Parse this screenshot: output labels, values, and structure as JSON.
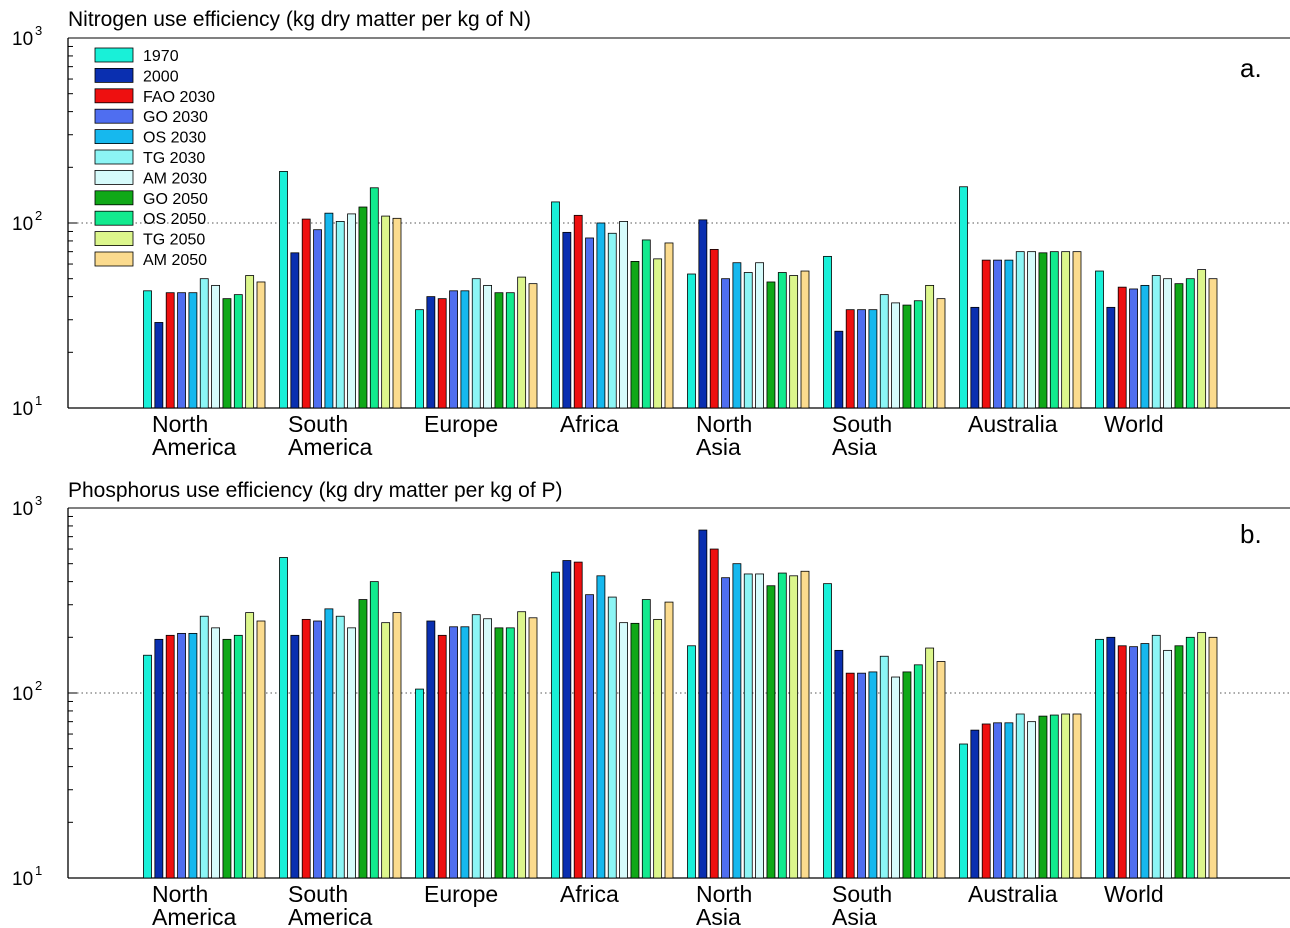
{
  "series_colors": {
    "1970": "#19f0d8",
    "2000": "#0a2fb0",
    "FAO 2030": "#ee1010",
    "GO 2030": "#4f6ef0",
    "OS 2030": "#16b8ee",
    "TG 2030": "#8cf5f5",
    "AM 2030": "#d6fbfb",
    "GO 2050": "#10a818",
    "OS 2050": "#12ea8e",
    "TG 2050": "#dcf68c",
    "AM 2050": "#fbdb8e"
  },
  "chart_data": [
    {
      "type": "bar",
      "title": "Nitrogen use efficiency (kg dry matter per kg of N)",
      "panel_label": "a.",
      "yscale": "log",
      "ylim": [
        10,
        1000
      ],
      "yticks": [
        {
          "base": "10",
          "exp": "1"
        },
        {
          "base": "10",
          "exp": "2"
        },
        {
          "base": "10",
          "exp": "3"
        }
      ],
      "grid": "dotted line at 10^2",
      "legend_position": "top-left",
      "categories": [
        [
          "North",
          "America"
        ],
        [
          "South",
          "America"
        ],
        [
          "Europe"
        ],
        [
          "Africa"
        ],
        [
          "North",
          "Asia"
        ],
        [
          "South",
          "Asia"
        ],
        [
          "Australia"
        ],
        [
          "World"
        ]
      ],
      "series": [
        {
          "name": "1970",
          "values": [
            43,
            190,
            34,
            130,
            53,
            66,
            157,
            55
          ]
        },
        {
          "name": "2000",
          "values": [
            29,
            69,
            40,
            89,
            104,
            26,
            35,
            35
          ]
        },
        {
          "name": "FAO 2030",
          "values": [
            42,
            105,
            39,
            110,
            72,
            34,
            63,
            45
          ]
        },
        {
          "name": "GO 2030",
          "values": [
            42,
            92,
            43,
            83,
            50,
            34,
            63,
            44
          ]
        },
        {
          "name": "OS 2030",
          "values": [
            42,
            113,
            43,
            100,
            61,
            34,
            63,
            46
          ]
        },
        {
          "name": "TG 2030",
          "values": [
            50,
            102,
            50,
            88,
            54,
            41,
            70,
            52
          ]
        },
        {
          "name": "AM 2030",
          "values": [
            46,
            112,
            46,
            102,
            61,
            37,
            70,
            50
          ]
        },
        {
          "name": "GO 2050",
          "values": [
            39,
            122,
            42,
            62,
            48,
            36,
            69,
            47
          ]
        },
        {
          "name": "OS 2050",
          "values": [
            41,
            155,
            42,
            81,
            54,
            38,
            70,
            50
          ]
        },
        {
          "name": "TG 2050",
          "values": [
            52,
            109,
            51,
            64,
            52,
            46,
            70,
            56
          ]
        },
        {
          "name": "AM 2050",
          "values": [
            48,
            106,
            47,
            78,
            55,
            39,
            70,
            50
          ]
        }
      ]
    },
    {
      "type": "bar",
      "title": "Phosphorus use efficiency (kg dry matter per kg of P)",
      "panel_label": "b.",
      "yscale": "log",
      "ylim": [
        10,
        1000
      ],
      "yticks": [
        {
          "base": "10",
          "exp": "1"
        },
        {
          "base": "10",
          "exp": "2"
        },
        {
          "base": "10",
          "exp": "3"
        }
      ],
      "grid": "dotted line at 10^2",
      "legend_position": "none",
      "categories": [
        [
          "North",
          "America"
        ],
        [
          "South",
          "America"
        ],
        [
          "Europe"
        ],
        [
          "Africa"
        ],
        [
          "North",
          "Asia"
        ],
        [
          "South",
          "Asia"
        ],
        [
          "Australia"
        ],
        [
          "World"
        ]
      ],
      "series": [
        {
          "name": "1970",
          "values": [
            160,
            540,
            105,
            450,
            180,
            390,
            53,
            195
          ]
        },
        {
          "name": "2000",
          "values": [
            195,
            205,
            245,
            520,
            760,
            170,
            63,
            200
          ]
        },
        {
          "name": "FAO 2030",
          "values": [
            205,
            250,
            205,
            510,
            600,
            128,
            68,
            180
          ]
        },
        {
          "name": "GO 2030",
          "values": [
            210,
            245,
            228,
            340,
            420,
            128,
            69,
            178
          ]
        },
        {
          "name": "OS 2030",
          "values": [
            210,
            285,
            228,
            430,
            500,
            130,
            69,
            185
          ]
        },
        {
          "name": "TG 2030",
          "values": [
            260,
            260,
            265,
            330,
            440,
            158,
            77,
            205
          ]
        },
        {
          "name": "AM 2030",
          "values": [
            225,
            225,
            252,
            240,
            440,
            122,
            70,
            170
          ]
        },
        {
          "name": "GO 2050",
          "values": [
            195,
            320,
            225,
            238,
            380,
            130,
            75,
            180
          ]
        },
        {
          "name": "OS 2050",
          "values": [
            205,
            400,
            225,
            320,
            445,
            142,
            76,
            200
          ]
        },
        {
          "name": "TG 2050",
          "values": [
            272,
            240,
            275,
            250,
            430,
            175,
            77,
            212
          ]
        },
        {
          "name": "AM 2050",
          "values": [
            245,
            272,
            255,
            310,
            455,
            148,
            77,
            200
          ]
        }
      ]
    }
  ]
}
